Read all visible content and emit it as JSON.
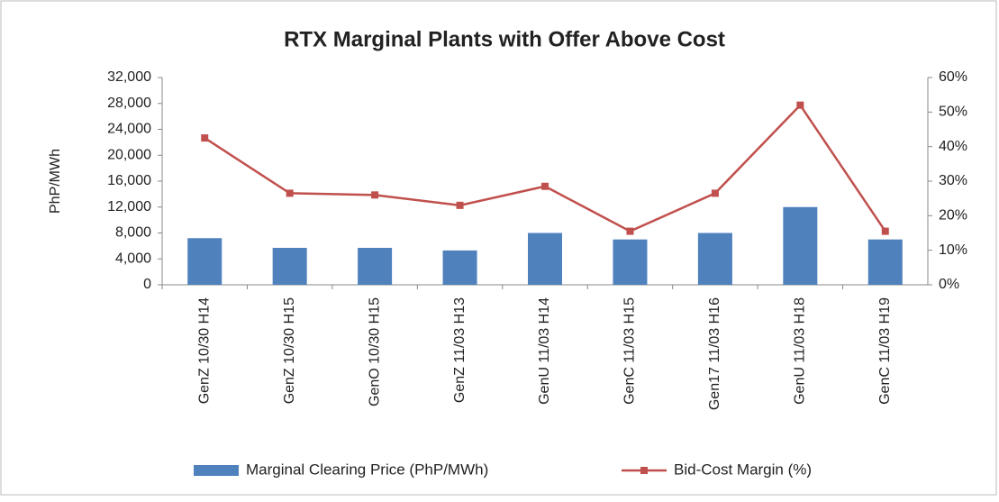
{
  "chart_data": {
    "type": "bar-line",
    "title": "RTX Marginal Plants with Offer Above Cost",
    "y_label": "PhP/MWh",
    "categories": [
      "GenZ 10/30 H14",
      "GenZ 10/30 H15",
      "GenO 10/30 H15",
      "GenZ 11/03 H13",
      "GenU 11/03 H14",
      "GenC 11/03 H15",
      "Gen17 11/03 H16",
      "GenU 11/03 H18",
      "GenC 11/03 H19"
    ],
    "series": [
      {
        "name": "Marginal Clearing Price (PhP/MWh)",
        "type": "bar",
        "color": "#4f81bd",
        "values": [
          7200,
          5700,
          5700,
          5300,
          8000,
          7000,
          8000,
          12000,
          7000
        ]
      },
      {
        "name": "Bid-Cost Margin (%)",
        "type": "line",
        "axis": "y2",
        "color": "#c0504d",
        "values": [
          42.5,
          26.5,
          26,
          23,
          28.5,
          15.5,
          26.5,
          52,
          15.5
        ]
      }
    ],
    "ylim": [
      0,
      32000
    ],
    "yticks": [
      0,
      {
        "value": 4000,
        "label": "4,000"
      },
      {
        "value": 8000,
        "label": "8,000"
      },
      {
        "value": 12000,
        "label": "12,000"
      },
      {
        "value": 16000,
        "label": "16,000"
      },
      {
        "value": 20000,
        "label": "20,000"
      },
      {
        "value": 24000,
        "label": "24,000"
      },
      {
        "value": 28000,
        "label": "28,000"
      },
      {
        "value": 32000,
        "label": "32,000"
      }
    ],
    "y2lim": [
      0,
      60
    ],
    "y2ticks": [
      {
        "value": 0,
        "label": "0%"
      },
      {
        "value": 10,
        "label": "10%"
      },
      {
        "value": 20,
        "label": "20%"
      },
      {
        "value": 30,
        "label": "30%"
      },
      {
        "value": 40,
        "label": "40%"
      },
      {
        "value": 50,
        "label": "50%"
      },
      {
        "value": 60,
        "label": "60%"
      }
    ],
    "grid": false,
    "legend": "bottom"
  }
}
